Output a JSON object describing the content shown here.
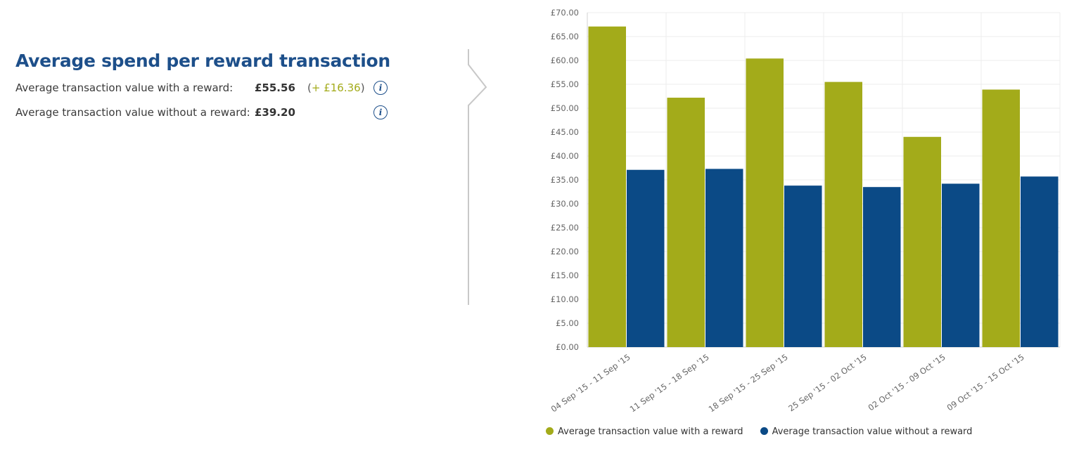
{
  "summary": {
    "title": "Average spend per reward transaction",
    "rows": [
      {
        "label": "Average transaction value with a reward:",
        "value": "£55.56",
        "delta_open": "(",
        "delta_amount": "+ £16.36",
        "delta_close": ")"
      },
      {
        "label": "Average transaction value without a reward:",
        "value": "£39.20"
      }
    ],
    "info_icon_glyph": "i"
  },
  "colors": {
    "with_reward": "#a3ab1a",
    "without_reward": "#0b4a86",
    "title": "#1d4f8a"
  },
  "chart_data": {
    "type": "bar",
    "categories": [
      "04 Sep '15 - 11 Sep '15",
      "11 Sep '15 - 18 Sep '15",
      "18 Sep '15 - 25 Sep '15",
      "25 Sep '15 - 02 Oct '15",
      "02 Oct '15 - 09 Oct '15",
      "09 Oct '15 - 15 Oct '15"
    ],
    "series": [
      {
        "name": "Average transaction value with a reward",
        "values": [
          67.1,
          52.2,
          60.4,
          55.5,
          44.0,
          53.9
        ]
      },
      {
        "name": "Average transaction value without a reward",
        "values": [
          37.1,
          37.3,
          33.8,
          33.5,
          34.2,
          35.7
        ]
      }
    ],
    "ylim": [
      0,
      70
    ],
    "yticks": [
      "£0.00",
      "£5.00",
      "£10.00",
      "£15.00",
      "£20.00",
      "£25.00",
      "£30.00",
      "£35.00",
      "£40.00",
      "£45.00",
      "£50.00",
      "£55.00",
      "£60.00",
      "£65.00",
      "£70.00"
    ],
    "grid": true,
    "legend_position": "bottom"
  }
}
